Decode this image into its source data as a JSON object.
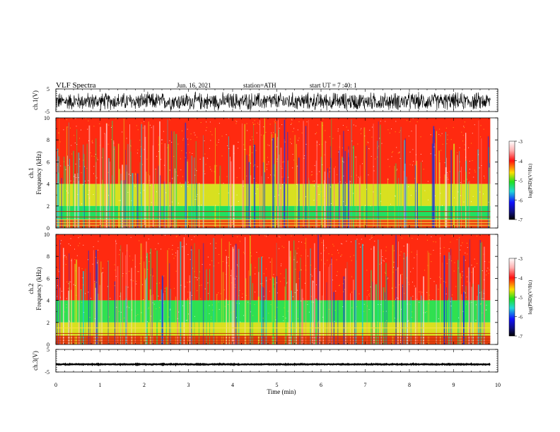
{
  "header": {
    "title": "VLF  Spectra",
    "date": "Jun. 16, 2021",
    "station": "station=ATH",
    "start": "start  UT  =    7  :40: 1"
  },
  "chart_data": [
    {
      "type": "line",
      "id": "ch1-waveform",
      "ylabel": "ch.1(V)",
      "ylim": [
        -5,
        5
      ],
      "yticks": [
        "5",
        "-5"
      ],
      "xlim": [
        0,
        10
      ],
      "x_end": 9.83,
      "baseline": -0.5,
      "amplitude": 4.5
    },
    {
      "type": "heatmap",
      "id": "ch1-spectrogram",
      "ylabel_top": "ch.1",
      "ylabel": "Frequency  (kHz)",
      "ylim": [
        0,
        10
      ],
      "yticks": [
        "0",
        "2",
        "4",
        "6",
        "8",
        "10"
      ],
      "xlim": [
        0,
        10
      ],
      "x_end": 9.83,
      "colorbar": {
        "label": "log(PSD)(V²/Hz)",
        "range": [
          -7,
          -3
        ],
        "ticks": [
          "-3",
          "-4",
          "-5",
          "-6",
          "-7"
        ]
      },
      "bands": [
        {
          "from": 4,
          "to": 10,
          "color": "#ff2a10"
        },
        {
          "from": 2,
          "to": 4,
          "color": "#d8e020"
        },
        {
          "from": 0.8,
          "to": 2,
          "color": "#20e060"
        },
        {
          "from": 0,
          "to": 0.8,
          "color": "#e84010"
        }
      ]
    },
    {
      "type": "heatmap",
      "id": "ch2-spectrogram",
      "ylabel_top": "ch.2",
      "ylabel": "Frequency  (kHz)",
      "ylim": [
        0,
        10
      ],
      "yticks": [
        "0",
        "2",
        "4",
        "6",
        "8",
        "10"
      ],
      "xlim": [
        0,
        10
      ],
      "x_end": 9.83,
      "colorbar": {
        "label": "log(PSD)(V²/Hz)",
        "range": [
          -7,
          -3
        ],
        "ticks": [
          "-3",
          "-4",
          "-5",
          "-6",
          "-7"
        ]
      },
      "bands": [
        {
          "from": 4,
          "to": 10,
          "color": "#ff2a10"
        },
        {
          "from": 2,
          "to": 4,
          "color": "#30e050"
        },
        {
          "from": 0.8,
          "to": 2,
          "color": "#d8e020"
        },
        {
          "from": 0,
          "to": 0.8,
          "color": "#e84010"
        }
      ]
    },
    {
      "type": "line",
      "id": "ch3-waveform",
      "ylabel": "ch.3(V)",
      "ylim": [
        -5,
        5
      ],
      "yticks": [
        "5",
        "-5"
      ],
      "xlim": [
        0,
        10
      ],
      "x_end": 9.83,
      "baseline": -1.6,
      "amplitude": 0.2
    }
  ],
  "x_axis": {
    "label": "Time  (min)",
    "ticks": [
      "0",
      "1",
      "2",
      "3",
      "4",
      "5",
      "6",
      "7",
      "8",
      "9",
      "10"
    ]
  },
  "colors": {
    "spectral_red": "#ff2a10",
    "spectral_yellow": "#d8e020",
    "spectral_green": "#20e060",
    "spectral_cyan": "#20c8d8",
    "spectral_blue": "#1030e0",
    "spectral_white": "#ffe0e0"
  }
}
